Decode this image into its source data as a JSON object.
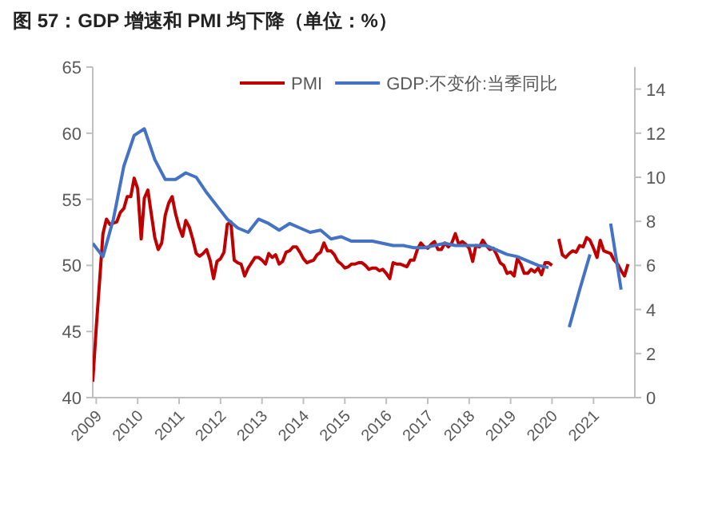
{
  "chart_data": {
    "type": "line",
    "title": "图 57：GDP 增速和 PMI 均下降（单位：%）",
    "xlim": [
      "2008-12-01",
      "2021-12-31"
    ],
    "xticks": [
      {
        "value": "2009-01-01",
        "label": "2009"
      },
      {
        "value": "2010-01-01",
        "label": "2010"
      },
      {
        "value": "2011-01-01",
        "label": "2011"
      },
      {
        "value": "2012-01-01",
        "label": "2012"
      },
      {
        "value": "2013-01-01",
        "label": "2013"
      },
      {
        "value": "2014-01-01",
        "label": "2014"
      },
      {
        "value": "2015-01-01",
        "label": "2015"
      },
      {
        "value": "2016-01-01",
        "label": "2016"
      },
      {
        "value": "2017-01-01",
        "label": "2017"
      },
      {
        "value": "2018-01-01",
        "label": "2018"
      },
      {
        "value": "2019-01-01",
        "label": "2019"
      },
      {
        "value": "2020-01-01",
        "label": "2020"
      },
      {
        "value": "2021-01-01",
        "label": "2021"
      }
    ],
    "ylim": [
      40,
      65
    ],
    "yticks": [
      40,
      45,
      50,
      55,
      60,
      65
    ],
    "y2lim": [
      0,
      15
    ],
    "y2ticks": [
      0,
      2,
      4,
      6,
      8,
      10,
      12,
      14
    ],
    "legend": "top",
    "grid": false,
    "series": [
      {
        "name": "PMI",
        "color": "#c00000",
        "x": [
          "2008-12",
          "2009-01",
          "2009-02",
          "2009-03",
          "2009-04",
          "2009-05",
          "2009-06",
          "2009-07",
          "2009-08",
          "2009-09",
          "2009-10",
          "2009-11",
          "2009-12",
          "2010-01",
          "2010-02",
          "2010-03",
          "2010-04",
          "2010-05",
          "2010-06",
          "2010-07",
          "2010-08",
          "2010-09",
          "2010-10",
          "2010-11",
          "2010-12",
          "2011-01",
          "2011-02",
          "2011-03",
          "2011-04",
          "2011-05",
          "2011-06",
          "2011-07",
          "2011-08",
          "2011-09",
          "2011-10",
          "2011-11",
          "2011-12",
          "2012-01",
          "2012-02",
          "2012-03",
          "2012-04",
          "2012-05",
          "2012-06",
          "2012-07",
          "2012-08",
          "2012-09",
          "2012-10",
          "2012-11",
          "2012-12",
          "2013-01",
          "2013-02",
          "2013-03",
          "2013-04",
          "2013-05",
          "2013-06",
          "2013-07",
          "2013-08",
          "2013-09",
          "2013-10",
          "2013-11",
          "2013-12",
          "2014-01",
          "2014-02",
          "2014-03",
          "2014-04",
          "2014-05",
          "2014-06",
          "2014-07",
          "2014-08",
          "2014-09",
          "2014-10",
          "2014-11",
          "2014-12",
          "2015-01",
          "2015-02",
          "2015-03",
          "2015-04",
          "2015-05",
          "2015-06",
          "2015-07",
          "2015-08",
          "2015-09",
          "2015-10",
          "2015-11",
          "2015-12",
          "2016-01",
          "2016-02",
          "2016-03",
          "2016-04",
          "2016-05",
          "2016-06",
          "2016-07",
          "2016-08",
          "2016-09",
          "2016-10",
          "2016-11",
          "2016-12",
          "2017-01",
          "2017-02",
          "2017-03",
          "2017-04",
          "2017-05",
          "2017-06",
          "2017-07",
          "2017-08",
          "2017-09",
          "2017-10",
          "2017-11",
          "2017-12",
          "2018-01",
          "2018-02",
          "2018-03",
          "2018-04",
          "2018-05",
          "2018-06",
          "2018-07",
          "2018-08",
          "2018-09",
          "2018-10",
          "2018-11",
          "2018-12",
          "2019-01",
          "2019-02",
          "2019-03",
          "2019-04",
          "2019-05",
          "2019-06",
          "2019-07",
          "2019-08",
          "2019-09",
          "2019-10",
          "2019-11",
          "2019-12",
          "2020-01",
          "2020-02",
          "2020-03",
          "2020-04",
          "2020-05",
          "2020-06",
          "2020-07",
          "2020-08",
          "2020-09",
          "2020-10",
          "2020-11",
          "2020-12",
          "2021-01",
          "2021-02",
          "2021-03",
          "2021-04",
          "2021-05",
          "2021-06",
          "2021-07",
          "2021-08",
          "2021-09",
          "2021-10",
          "2021-11"
        ],
        "values": [
          41.2,
          45.3,
          49.0,
          52.4,
          53.5,
          53.1,
          53.2,
          53.3,
          54.0,
          54.3,
          55.2,
          55.2,
          56.6,
          55.8,
          52.0,
          55.1,
          55.7,
          53.9,
          52.1,
          51.2,
          51.7,
          53.8,
          54.7,
          55.2,
          53.9,
          52.9,
          52.2,
          53.4,
          52.9,
          52.0,
          50.9,
          50.7,
          50.9,
          51.2,
          50.4,
          49.0,
          50.3,
          50.5,
          51.0,
          53.1,
          53.3,
          50.4,
          50.2,
          50.1,
          49.2,
          49.8,
          50.2,
          50.6,
          50.6,
          50.4,
          50.1,
          50.9,
          50.6,
          50.8,
          50.1,
          50.3,
          51.0,
          51.1,
          51.4,
          51.4,
          51.0,
          50.5,
          50.2,
          50.3,
          50.4,
          50.8,
          51.0,
          51.7,
          51.1,
          51.1,
          50.8,
          50.3,
          50.1,
          49.8,
          49.9,
          50.1,
          50.1,
          50.2,
          50.2,
          50.0,
          49.7,
          49.8,
          49.8,
          49.6,
          49.7,
          49.4,
          49.0,
          50.2,
          50.1,
          50.1,
          50.0,
          49.9,
          50.4,
          50.4,
          51.2,
          51.7,
          51.4,
          51.3,
          51.6,
          51.8,
          51.2,
          51.2,
          51.7,
          51.4,
          51.7,
          52.4,
          51.6,
          51.8,
          51.6,
          51.3,
          50.3,
          51.5,
          51.4,
          51.9,
          51.5,
          51.2,
          51.3,
          50.8,
          50.2,
          50.0,
          49.4,
          49.5,
          49.2,
          50.5,
          50.1,
          49.4,
          49.4,
          49.7,
          49.5,
          49.8,
          49.3,
          50.2,
          50.2,
          50.0,
          null,
          52.0,
          50.8,
          50.6,
          50.9,
          51.1,
          51.0,
          51.5,
          51.4,
          52.1,
          51.9,
          51.3,
          50.6,
          51.9,
          51.1,
          51.0,
          50.9,
          50.4,
          50.1,
          49.6,
          49.2,
          50.1
        ]
      },
      {
        "name": "GDP:不变价:当季同比",
        "color": "#4472c4",
        "axis": "y2",
        "x": [
          "2008-12",
          "2009-03",
          "2009-06",
          "2009-09",
          "2009-12",
          "2010-03",
          "2010-06",
          "2010-09",
          "2010-12",
          "2011-03",
          "2011-06",
          "2011-09",
          "2011-12",
          "2012-03",
          "2012-06",
          "2012-09",
          "2012-12",
          "2013-03",
          "2013-06",
          "2013-09",
          "2013-12",
          "2014-03",
          "2014-06",
          "2014-09",
          "2014-12",
          "2015-03",
          "2015-06",
          "2015-09",
          "2015-12",
          "2016-03",
          "2016-06",
          "2016-09",
          "2016-12",
          "2017-03",
          "2017-06",
          "2017-09",
          "2017-12",
          "2018-03",
          "2018-06",
          "2018-09",
          "2018-12",
          "2019-03",
          "2019-06",
          "2019-09",
          "2019-12",
          "2020-03",
          "2020-06",
          "2020-09",
          "2020-12",
          "2021-03",
          "2021-06",
          "2021-09"
        ],
        "values": [
          7.0,
          6.4,
          8.1,
          10.5,
          11.9,
          12.2,
          10.8,
          9.9,
          9.9,
          10.2,
          10.0,
          9.3,
          8.7,
          8.1,
          7.7,
          7.5,
          8.1,
          7.9,
          7.6,
          7.9,
          7.7,
          7.5,
          7.6,
          7.2,
          7.3,
          7.1,
          7.1,
          7.1,
          7.0,
          6.9,
          6.9,
          6.8,
          6.8,
          6.9,
          7.0,
          6.9,
          6.9,
          6.9,
          6.9,
          6.7,
          6.5,
          6.4,
          6.2,
          6.0,
          5.9,
          null,
          3.2,
          4.9,
          6.5,
          null,
          7.9,
          4.9
        ]
      }
    ]
  }
}
